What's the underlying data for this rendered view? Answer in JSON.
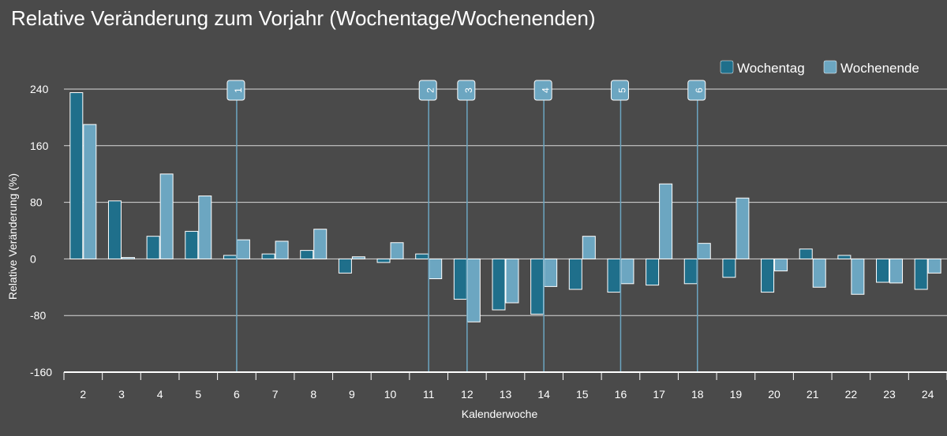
{
  "chart_data": {
    "type": "bar",
    "title": "Relative Veränderung zum Vorjahr (Wochentage/Wochenenden)",
    "xlabel": "Kalenderwoche",
    "ylabel": "Relative Veränderung (%)",
    "ylim": [
      -160,
      240
    ],
    "yticks": [
      240,
      160,
      80,
      0,
      -80,
      -160
    ],
    "ytick_labels": [
      "240",
      "160",
      "80",
      "0",
      "-80",
      "-160"
    ],
    "grid": true,
    "legend_position": "top-right",
    "categories": [
      "2",
      "3",
      "4",
      "5",
      "6",
      "7",
      "8",
      "9",
      "10",
      "11",
      "12",
      "13",
      "14",
      "15",
      "16",
      "17",
      "18",
      "19",
      "20",
      "21",
      "22",
      "23",
      "24"
    ],
    "series": [
      {
        "name": "Wochentag",
        "color": "#1f6f8b",
        "values": [
          235,
          82,
          32,
          39,
          5,
          7,
          12,
          -20,
          -5,
          7,
          -57,
          -72,
          -78,
          -43,
          -47,
          -37,
          -35,
          -26,
          -47,
          14,
          5,
          -33,
          -43
        ]
      },
      {
        "name": "Wochenende",
        "color": "#6ca6c1",
        "values": [
          190,
          2,
          120,
          89,
          27,
          25,
          42,
          3,
          23,
          -28,
          -89,
          -62,
          -39,
          32,
          -35,
          106,
          22,
          86,
          -17,
          -40,
          -50,
          -34,
          -20
        ]
      }
    ],
    "annotations": [
      {
        "label": "1",
        "x_category": "6"
      },
      {
        "label": "2",
        "x_category": "11"
      },
      {
        "label": "3",
        "x_category": "12"
      },
      {
        "label": "4",
        "x_category": "14"
      },
      {
        "label": "5",
        "x_category": "16"
      },
      {
        "label": "6",
        "x_category": "18"
      }
    ]
  }
}
